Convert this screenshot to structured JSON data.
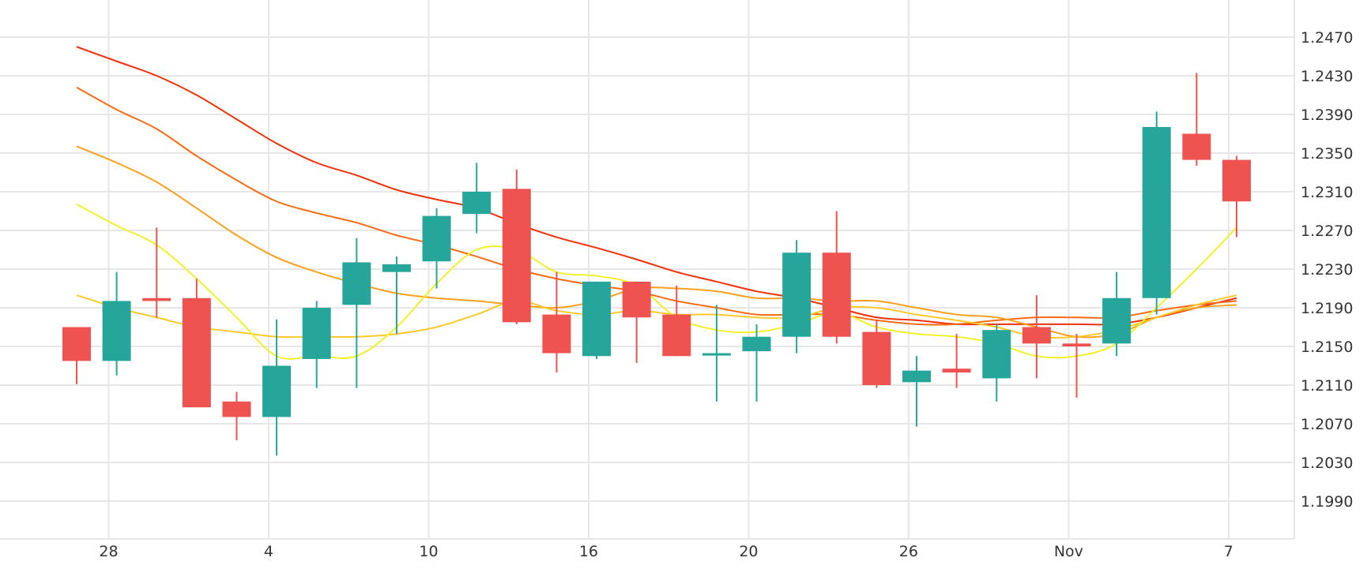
{
  "chart_data": {
    "type": "candlestick",
    "x_ticks": [
      "28",
      "4",
      "10",
      "16",
      "20",
      "26",
      "Nov",
      "7"
    ],
    "y_ticks": [
      "1.2470",
      "1.2430",
      "1.2390",
      "1.2350",
      "1.2310",
      "1.2270",
      "1.2230",
      "1.2190",
      "1.2150",
      "1.2110",
      "1.2070",
      "1.2030",
      "1.1990"
    ],
    "ylim": [
      1.1949,
      1.251
    ],
    "grid": true,
    "candles": [
      {
        "x": 0,
        "open": 1.217,
        "high": 1.217,
        "low": 1.2111,
        "close": 1.2135
      },
      {
        "x": 1,
        "open": 1.2135,
        "high": 1.2227,
        "low": 1.212,
        "close": 1.2197
      },
      {
        "x": 2,
        "open": 1.22,
        "high": 1.2273,
        "low": 1.218,
        "close": 1.2197
      },
      {
        "x": 3,
        "open": 1.22,
        "high": 1.222,
        "low": 1.2087,
        "close": 1.2087
      },
      {
        "x": 4,
        "open": 1.2093,
        "high": 1.2103,
        "low": 1.2053,
        "close": 1.2077
      },
      {
        "x": 5,
        "open": 1.2077,
        "high": 1.2178,
        "low": 1.2037,
        "close": 1.213
      },
      {
        "x": 6,
        "open": 1.2137,
        "high": 1.2197,
        "low": 1.2107,
        "close": 1.219
      },
      {
        "x": 7,
        "open": 1.2193,
        "high": 1.2262,
        "low": 1.2107,
        "close": 1.2237
      },
      {
        "x": 8,
        "open": 1.2227,
        "high": 1.2243,
        "low": 1.2163,
        "close": 1.2235
      },
      {
        "x": 9,
        "open": 1.2238,
        "high": 1.2293,
        "low": 1.221,
        "close": 1.2285
      },
      {
        "x": 10,
        "open": 1.2287,
        "high": 1.234,
        "low": 1.2267,
        "close": 1.231
      },
      {
        "x": 11,
        "open": 1.2313,
        "high": 1.2333,
        "low": 1.2173,
        "close": 1.2175
      },
      {
        "x": 12,
        "open": 1.2183,
        "high": 1.2227,
        "low": 1.2123,
        "close": 1.2143
      },
      {
        "x": 13,
        "open": 1.214,
        "high": 1.2217,
        "low": 1.2137,
        "close": 1.2217
      },
      {
        "x": 14,
        "open": 1.2217,
        "high": 1.2217,
        "low": 1.2133,
        "close": 1.218
      },
      {
        "x": 15,
        "open": 1.2183,
        "high": 1.2213,
        "low": 1.214,
        "close": 1.214
      },
      {
        "x": 16,
        "open": 1.2143,
        "high": 1.2193,
        "low": 1.2093,
        "close": 1.2143
      },
      {
        "x": 17,
        "open": 1.2145,
        "high": 1.2173,
        "low": 1.2093,
        "close": 1.216
      },
      {
        "x": 18,
        "open": 1.216,
        "high": 1.226,
        "low": 1.2143,
        "close": 1.2247
      },
      {
        "x": 19,
        "open": 1.2247,
        "high": 1.229,
        "low": 1.2153,
        "close": 1.216
      },
      {
        "x": 20,
        "open": 1.2165,
        "high": 1.2177,
        "low": 1.2107,
        "close": 1.211
      },
      {
        "x": 21,
        "open": 1.2113,
        "high": 1.214,
        "low": 1.2067,
        "close": 1.2125
      },
      {
        "x": 22,
        "open": 1.2127,
        "high": 1.2163,
        "low": 1.2107,
        "close": 1.2123
      },
      {
        "x": 23,
        "open": 1.2117,
        "high": 1.2173,
        "low": 1.2093,
        "close": 1.2167
      },
      {
        "x": 24,
        "open": 1.217,
        "high": 1.2203,
        "low": 1.2117,
        "close": 1.2153
      },
      {
        "x": 25,
        "open": 1.2153,
        "high": 1.2163,
        "low": 1.2097,
        "close": 1.215
      },
      {
        "x": 26,
        "open": 1.2153,
        "high": 1.2227,
        "low": 1.214,
        "close": 1.22
      },
      {
        "x": 27,
        "open": 1.22,
        "high": 1.2393,
        "low": 1.2183,
        "close": 1.2377
      },
      {
        "x": 28,
        "open": 1.237,
        "high": 1.2433,
        "low": 1.2337,
        "close": 1.2343
      },
      {
        "x": 29,
        "open": 1.2343,
        "high": 1.2347,
        "low": 1.2263,
        "close": 1.23
      }
    ],
    "ma_lines": [
      {
        "color": "#f0300a",
        "values": [
          1.246,
          1.2445,
          1.243,
          1.241,
          1.2385,
          1.236,
          1.234,
          1.2327,
          1.2312,
          1.2302,
          1.2293,
          1.2277,
          1.2263,
          1.2252,
          1.224,
          1.2227,
          1.2217,
          1.2207,
          1.22,
          1.219,
          1.218,
          1.2177,
          1.2173,
          1.2173,
          1.2173,
          1.2173,
          1.2173,
          1.218,
          1.219,
          1.22
        ]
      },
      {
        "color": "#f96b12",
        "values": [
          1.2418,
          1.2395,
          1.2375,
          1.2347,
          1.2322,
          1.23,
          1.2288,
          1.2278,
          1.2265,
          1.2255,
          1.2243,
          1.223,
          1.222,
          1.2213,
          1.2207,
          1.2197,
          1.219,
          1.2183,
          1.2183,
          1.2183,
          1.2177,
          1.2173,
          1.2173,
          1.2177,
          1.218,
          1.218,
          1.218,
          1.2187,
          1.2193,
          1.2197
        ]
      },
      {
        "color": "#fba01d",
        "values": [
          1.2357,
          1.234,
          1.232,
          1.2293,
          1.2265,
          1.2242,
          1.2227,
          1.2215,
          1.2205,
          1.22,
          1.2197,
          1.2193,
          1.219,
          1.2197,
          1.221,
          1.221,
          1.2207,
          1.22,
          1.22,
          1.2197,
          1.2197,
          1.219,
          1.2183,
          1.218,
          1.217,
          1.216,
          1.2163,
          1.218,
          1.219,
          1.2193
        ]
      },
      {
        "color": "#fbc82c",
        "values": [
          1.2203,
          1.219,
          1.218,
          1.217,
          1.2165,
          1.216,
          1.216,
          1.216,
          1.2163,
          1.217,
          1.2183,
          1.2197,
          1.2187,
          1.2183,
          1.2187,
          1.2183,
          1.2183,
          1.218,
          1.218,
          1.219,
          1.219,
          1.2183,
          1.2177,
          1.217,
          1.216,
          1.216,
          1.2167,
          1.218,
          1.2193,
          1.2203
        ]
      },
      {
        "color": "#f3f02a",
        "values": [
          1.2297,
          1.2275,
          1.2255,
          1.222,
          1.218,
          1.214,
          1.214,
          1.214,
          1.217,
          1.2215,
          1.225,
          1.225,
          1.2227,
          1.2223,
          1.2213,
          1.218,
          1.2167,
          1.2165,
          1.2173,
          1.2185,
          1.217,
          1.2163,
          1.216,
          1.2153,
          1.214,
          1.214,
          1.2153,
          1.219,
          1.223,
          1.2273
        ]
      }
    ],
    "colors": {
      "up": "#26a69a",
      "down": "#ef5350",
      "grid": "#e6e6e6",
      "tick_text": "#333333"
    }
  }
}
